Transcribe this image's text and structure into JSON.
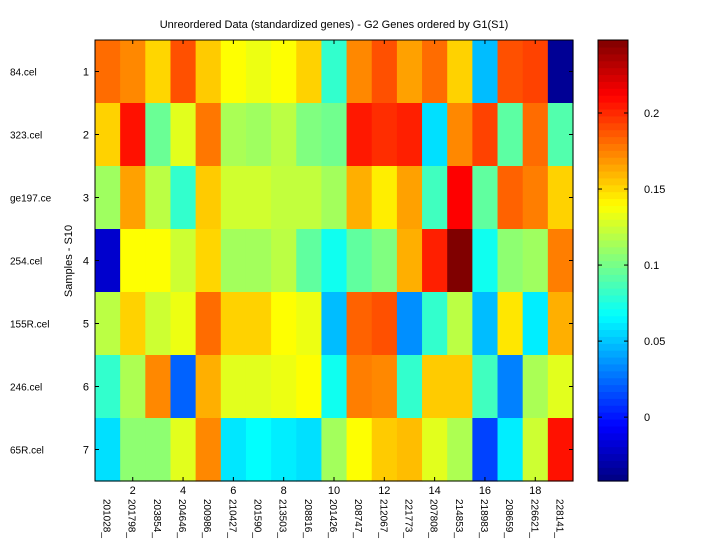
{
  "chart_data": {
    "type": "heatmap",
    "title": "Unreordered Data (standardized genes) - G2 Genes ordered by G1(S1)",
    "ylabel": "Samples - S10",
    "xlabel": "",
    "row_labels": [
      "84.cel",
      "323.cel",
      "ge197.ce",
      "254.cel",
      "155R.cel",
      "246.cel",
      "65R.cel"
    ],
    "row_ticks": [
      "1",
      "2",
      "3",
      "4",
      "5",
      "6",
      "7"
    ],
    "col_ticks": [
      {
        "col": 2,
        "label": "2"
      },
      {
        "col": 4,
        "label": "4"
      },
      {
        "col": 6,
        "label": "6"
      },
      {
        "col": 8,
        "label": "8"
      },
      {
        "col": 10,
        "label": "10"
      },
      {
        "col": 12,
        "label": "12"
      },
      {
        "col": 14,
        "label": "14"
      },
      {
        "col": 16,
        "label": "16"
      },
      {
        "col": 18,
        "label": "18"
      }
    ],
    "col_labels": [
      "201028_",
      "201798_",
      "203854_",
      "204646_",
      "200986_",
      "210427_",
      "201590_",
      "213503_",
      "208816_",
      "201426_",
      "208747_",
      "212067_",
      "221773_",
      "207808_",
      "214853_",
      "218983_",
      "208659_",
      "226621_",
      "228141_"
    ],
    "colormap": "jet",
    "clim": [
      -0.042,
      0.248
    ],
    "colorbar_ticks": [
      {
        "value": 0,
        "label": "0"
      },
      {
        "value": 0.05,
        "label": "0.05"
      },
      {
        "value": 0.1,
        "label": "0.1"
      },
      {
        "value": 0.15,
        "label": "0.15"
      },
      {
        "value": 0.2,
        "label": "0.2"
      }
    ],
    "values": [
      [
        0.181,
        0.173,
        0.151,
        0.189,
        0.154,
        0.139,
        0.134,
        0.139,
        0.152,
        0.081,
        0.173,
        0.189,
        0.166,
        0.181,
        0.152,
        0.048,
        0.189,
        0.193,
        -0.036
      ],
      [
        0.152,
        0.207,
        0.097,
        0.131,
        0.178,
        0.115,
        0.112,
        0.12,
        0.103,
        0.099,
        0.205,
        0.199,
        0.203,
        0.058,
        0.173,
        0.193,
        0.093,
        0.181,
        0.09
      ],
      [
        0.112,
        0.166,
        0.12,
        0.081,
        0.154,
        0.126,
        0.126,
        0.122,
        0.122,
        0.113,
        0.162,
        0.144,
        0.166,
        0.085,
        0.212,
        0.094,
        0.184,
        0.176,
        0.152
      ],
      [
        -0.02,
        0.139,
        0.139,
        0.125,
        0.151,
        0.113,
        0.113,
        0.12,
        0.094,
        0.071,
        0.094,
        0.103,
        0.162,
        0.203,
        0.248,
        0.071,
        0.107,
        0.112,
        0.176
      ],
      [
        0.12,
        0.152,
        0.125,
        0.134,
        0.181,
        0.152,
        0.152,
        0.139,
        0.134,
        0.048,
        0.184,
        0.189,
        0.035,
        0.081,
        0.12,
        0.048,
        0.146,
        0.062,
        0.162
      ],
      [
        0.081,
        0.116,
        0.173,
        0.022,
        0.162,
        0.131,
        0.131,
        0.134,
        0.139,
        0.071,
        0.176,
        0.173,
        0.081,
        0.154,
        0.154,
        0.085,
        0.031,
        0.115,
        0.131
      ],
      [
        0.058,
        0.107,
        0.107,
        0.131,
        0.173,
        0.06,
        0.067,
        0.062,
        0.058,
        0.113,
        0.139,
        0.154,
        0.158,
        0.131,
        0.116,
        0.013,
        0.062,
        0.125,
        0.207
      ]
    ]
  }
}
